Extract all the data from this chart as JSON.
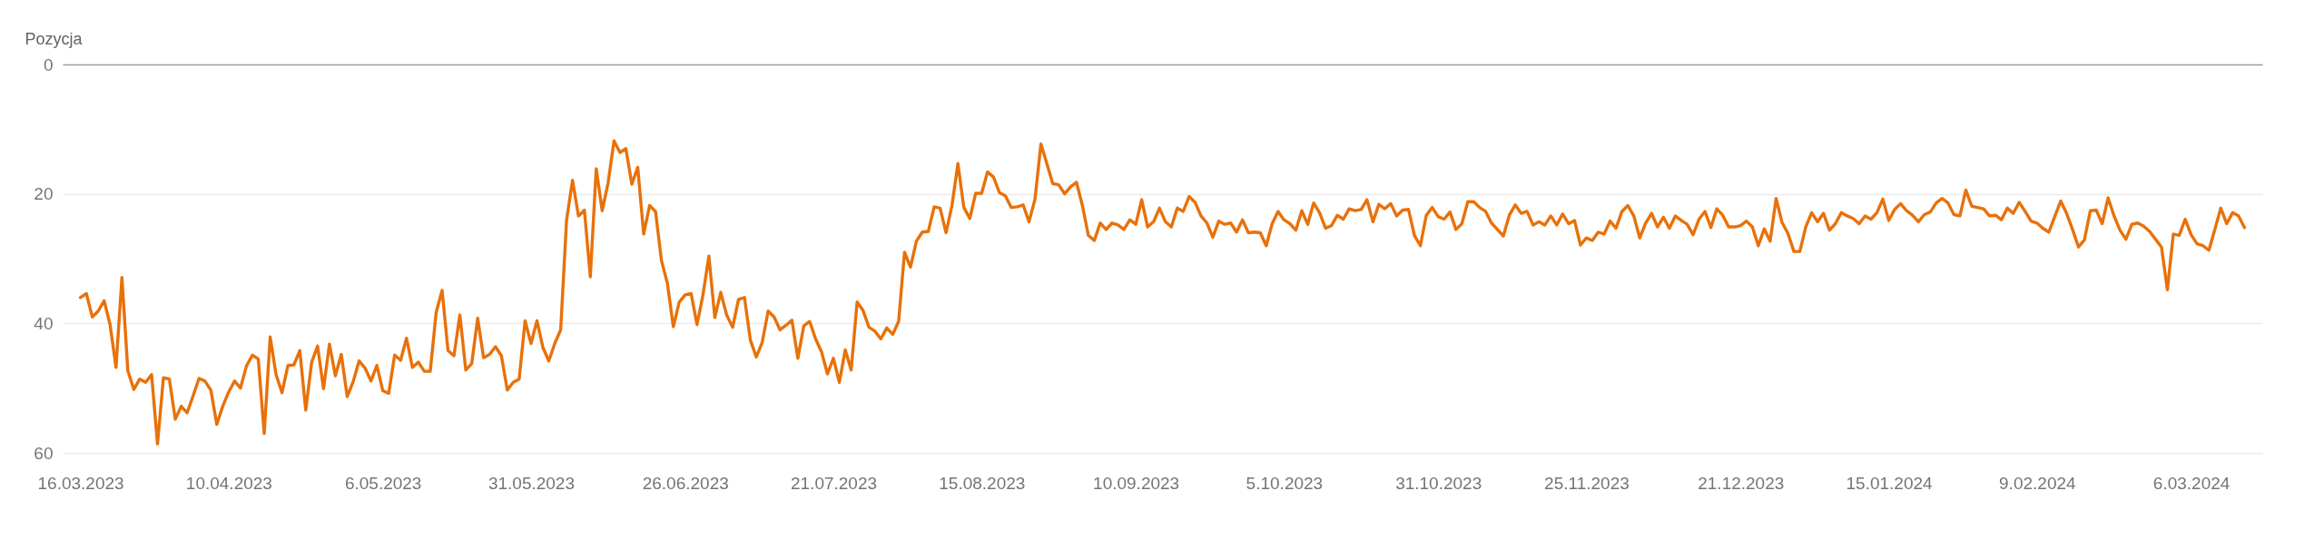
{
  "chart_data": {
    "type": "line",
    "ylabel": "Pozycja",
    "x": [
      "2023-03-16",
      "2023-03-17",
      "2023-03-18",
      "2023-03-19",
      "2023-03-20",
      "2023-03-21",
      "2023-03-22",
      "2023-03-23",
      "2023-03-24",
      "2023-03-25",
      "2023-03-26",
      "2023-03-27",
      "2023-03-28",
      "2023-03-29",
      "2023-03-30",
      "2023-03-31",
      "2023-04-01",
      "2023-04-02",
      "2023-04-03",
      "2023-04-04",
      "2023-04-05",
      "2023-04-06",
      "2023-04-07",
      "2023-04-08",
      "2023-04-09",
      "2023-04-10",
      "2023-04-11",
      "2023-04-12",
      "2023-04-13",
      "2023-04-14",
      "2023-04-15",
      "2023-04-16",
      "2023-04-17",
      "2023-04-18",
      "2023-04-19",
      "2023-04-20",
      "2023-04-21",
      "2023-04-22",
      "2023-04-23",
      "2023-04-24",
      "2023-04-25",
      "2023-04-26",
      "2023-04-27",
      "2023-04-28",
      "2023-04-29",
      "2023-04-30",
      "2023-05-01",
      "2023-05-02",
      "2023-05-03",
      "2023-05-04",
      "2023-05-05",
      "2023-05-06",
      "2023-05-07",
      "2023-05-08",
      "2023-05-09",
      "2023-05-10",
      "2023-05-11",
      "2023-05-12",
      "2023-05-13",
      "2023-05-14",
      "2023-05-15",
      "2023-05-16",
      "2023-05-17",
      "2023-05-18",
      "2023-05-19",
      "2023-05-20",
      "2023-05-21",
      "2023-05-22",
      "2023-05-23",
      "2023-05-24",
      "2023-05-25",
      "2023-05-26",
      "2023-05-27",
      "2023-05-28",
      "2023-05-29",
      "2023-05-30",
      "2023-05-31",
      "2023-06-01",
      "2023-06-02",
      "2023-06-03",
      "2023-06-04",
      "2023-06-05",
      "2023-06-06",
      "2023-06-07",
      "2023-06-08",
      "2023-06-09",
      "2023-06-10",
      "2023-06-11",
      "2023-06-12",
      "2023-06-13",
      "2023-06-14",
      "2023-06-15",
      "2023-06-16",
      "2023-06-17",
      "2023-06-18",
      "2023-06-19",
      "2023-06-20",
      "2023-06-21",
      "2023-06-22",
      "2023-06-23",
      "2023-06-24",
      "2023-06-25",
      "2023-06-26",
      "2023-06-27",
      "2023-06-28",
      "2023-06-29",
      "2023-06-30",
      "2023-07-01",
      "2023-07-02",
      "2023-07-03",
      "2023-07-04",
      "2023-07-05",
      "2023-07-06",
      "2023-07-07",
      "2023-07-08",
      "2023-07-09",
      "2023-07-10",
      "2023-07-11",
      "2023-07-12",
      "2023-07-13",
      "2023-07-14",
      "2023-07-15",
      "2023-07-16",
      "2023-07-17",
      "2023-07-18",
      "2023-07-19",
      "2023-07-20",
      "2023-07-21",
      "2023-07-22",
      "2023-07-23",
      "2023-07-24",
      "2023-07-25",
      "2023-07-26",
      "2023-07-27",
      "2023-07-28",
      "2023-07-29",
      "2023-07-30",
      "2023-07-31",
      "2023-08-01",
      "2023-08-02",
      "2023-08-03",
      "2023-08-04",
      "2023-08-05",
      "2023-08-06",
      "2023-08-07",
      "2023-08-08",
      "2023-08-09",
      "2023-08-10",
      "2023-08-11",
      "2023-08-12",
      "2023-08-13",
      "2023-08-14",
      "2023-08-15",
      "2023-08-16",
      "2023-08-17",
      "2023-08-18",
      "2023-08-19",
      "2023-08-20",
      "2023-08-21",
      "2023-08-22",
      "2023-08-23",
      "2023-08-24",
      "2023-08-25",
      "2023-08-26",
      "2023-08-27",
      "2023-08-28",
      "2023-08-29",
      "2023-08-30",
      "2023-08-31",
      "2023-09-01",
      "2023-09-02",
      "2023-09-03",
      "2023-09-04",
      "2023-09-05",
      "2023-09-06",
      "2023-09-07",
      "2023-09-08",
      "2023-09-09",
      "2023-09-10",
      "2023-09-11",
      "2023-09-12",
      "2023-09-13",
      "2023-09-14",
      "2023-09-15",
      "2023-09-16",
      "2023-09-17",
      "2023-09-18",
      "2023-09-19",
      "2023-09-20",
      "2023-09-21",
      "2023-09-22",
      "2023-09-23",
      "2023-09-24",
      "2023-09-25",
      "2023-09-26",
      "2023-09-27",
      "2023-09-28",
      "2023-09-29",
      "2023-09-30",
      "2023-10-01",
      "2023-10-02",
      "2023-10-03",
      "2023-10-04",
      "2023-10-05",
      "2023-10-06",
      "2023-10-07",
      "2023-10-08",
      "2023-10-09",
      "2023-10-10",
      "2023-10-11",
      "2023-10-12",
      "2023-10-13",
      "2023-10-14",
      "2023-10-15",
      "2023-10-16",
      "2023-10-17",
      "2023-10-18",
      "2023-10-19",
      "2023-10-20",
      "2023-10-21",
      "2023-10-22",
      "2023-10-23",
      "2023-10-24",
      "2023-10-25",
      "2023-10-26",
      "2023-10-27",
      "2023-10-28",
      "2023-10-29",
      "2023-10-30",
      "2023-10-31",
      "2023-11-01",
      "2023-11-02",
      "2023-11-03",
      "2023-11-04",
      "2023-11-05",
      "2023-11-06",
      "2023-11-07",
      "2023-11-08",
      "2023-11-09",
      "2023-11-10",
      "2023-11-11",
      "2023-11-12",
      "2023-11-13",
      "2023-11-14",
      "2023-11-15",
      "2023-11-16",
      "2023-11-17",
      "2023-11-18",
      "2023-11-19",
      "2023-11-20",
      "2023-11-21",
      "2023-11-22",
      "2023-11-23",
      "2023-11-24",
      "2023-11-25",
      "2023-11-26",
      "2023-11-27",
      "2023-11-28",
      "2023-11-29",
      "2023-11-30",
      "2023-12-01",
      "2023-12-02",
      "2023-12-03",
      "2023-12-04",
      "2023-12-05",
      "2023-12-06",
      "2023-12-07",
      "2023-12-08",
      "2023-12-09",
      "2023-12-10",
      "2023-12-11",
      "2023-12-12",
      "2023-12-13",
      "2023-12-14",
      "2023-12-15",
      "2023-12-16",
      "2023-12-17",
      "2023-12-18",
      "2023-12-19",
      "2023-12-20",
      "2023-12-21",
      "2023-12-22",
      "2023-12-23",
      "2023-12-24",
      "2023-12-25",
      "2023-12-26",
      "2023-12-27",
      "2023-12-28",
      "2023-12-29",
      "2023-12-30",
      "2023-12-31",
      "2024-01-01",
      "2024-01-02",
      "2024-01-03",
      "2024-01-04",
      "2024-01-05",
      "2024-01-06",
      "2024-01-07",
      "2024-01-08",
      "2024-01-09",
      "2024-01-10",
      "2024-01-11",
      "2024-01-12",
      "2024-01-13",
      "2024-01-14",
      "2024-01-15",
      "2024-01-16",
      "2024-01-17",
      "2024-01-18",
      "2024-01-19",
      "2024-01-20",
      "2024-01-21",
      "2024-01-22",
      "2024-01-23",
      "2024-01-24",
      "2024-01-25",
      "2024-01-26",
      "2024-01-27",
      "2024-01-28",
      "2024-01-29",
      "2024-01-30",
      "2024-01-31",
      "2024-02-01",
      "2024-02-02",
      "2024-02-03",
      "2024-02-04",
      "2024-02-05",
      "2024-02-06",
      "2024-02-07",
      "2024-02-08",
      "2024-02-09",
      "2024-02-10",
      "2024-02-11",
      "2024-02-12",
      "2024-02-13",
      "2024-02-14",
      "2024-02-15",
      "2024-02-16",
      "2024-02-17",
      "2024-02-18",
      "2024-02-19",
      "2024-02-20",
      "2024-02-21",
      "2024-02-22",
      "2024-02-23",
      "2024-02-24",
      "2024-02-25",
      "2024-02-26",
      "2024-02-27",
      "2024-02-28",
      "2024-02-29",
      "2024-03-01",
      "2024-03-02",
      "2024-03-03",
      "2024-03-04",
      "2024-03-05",
      "2024-03-06",
      "2024-03-07",
      "2024-03-08",
      "2024-03-09",
      "2024-03-10",
      "2024-03-11",
      "2024-03-12",
      "2024-03-13",
      "2024-03-14",
      "2024-03-15"
    ],
    "series": [
      {
        "color": "#e8710a",
        "values": [
          36.0,
          35.4,
          39.0,
          38.1,
          36.5,
          40.2,
          46.8,
          32.9,
          47.3,
          50.2,
          48.6,
          49.1,
          47.9,
          58.6,
          48.4,
          48.6,
          54.8,
          52.8,
          53.8,
          51.2,
          48.5,
          48.9,
          50.3,
          55.6,
          52.8,
          50.6,
          48.9,
          50.0,
          46.6,
          44.9,
          45.5,
          57.0,
          42.1,
          47.9,
          50.7,
          46.5,
          46.4,
          44.2,
          53.4,
          46.0,
          43.5,
          50.1,
          43.2,
          48.1,
          44.8,
          51.3,
          49.0,
          45.8,
          46.9,
          48.9,
          46.5,
          50.4,
          50.8,
          44.9,
          45.7,
          42.3,
          46.8,
          46.0,
          47.4,
          47.4,
          38.3,
          34.9,
          44.2,
          45.0,
          38.7,
          47.2,
          46.2,
          39.2,
          45.3,
          44.8,
          43.6,
          45.0,
          50.3,
          49.1,
          48.6,
          39.6,
          43.1,
          39.6,
          43.7,
          45.8,
          43.1,
          41.0,
          24.0,
          17.9,
          23.4,
          22.5,
          32.8,
          16.1,
          22.6,
          18.3,
          11.8,
          13.6,
          13.0,
          18.5,
          15.9,
          26.2,
          21.8,
          22.7,
          30.3,
          33.8,
          40.5,
          36.7,
          35.6,
          35.4,
          40.2,
          35.6,
          29.6,
          39.1,
          35.2,
          38.7,
          40.6,
          36.3,
          36.0,
          42.6,
          45.2,
          42.9,
          38.1,
          39.0,
          41.0,
          40.3,
          39.5,
          45.4,
          40.4,
          39.7,
          42.4,
          44.4,
          47.8,
          45.4,
          49.1,
          44.1,
          47.2,
          36.7,
          38.0,
          40.6,
          41.2,
          42.4,
          40.7,
          41.7,
          39.7,
          29.0,
          31.3,
          27.3,
          25.9,
          25.8,
          22.0,
          22.2,
          26.0,
          21.8,
          15.3,
          22.1,
          23.8,
          19.9,
          19.9,
          16.6,
          17.4,
          19.8,
          20.3,
          22.1,
          22.0,
          21.7,
          24.3,
          20.8,
          12.3,
          15.3,
          18.4,
          18.6,
          20.0,
          18.9,
          18.2,
          21.8,
          26.4,
          27.2,
          24.5,
          25.5,
          24.5,
          24.8,
          25.5,
          24.0,
          24.7,
          20.9,
          25.1,
          24.3,
          22.2,
          24.3,
          25.1,
          22.2,
          22.7,
          20.4,
          21.3,
          23.4,
          24.5,
          26.7,
          24.2,
          24.7,
          24.5,
          25.9,
          24.0,
          26.0,
          25.9,
          26.0,
          28.0,
          24.6,
          22.7,
          24.0,
          24.6,
          25.6,
          22.6,
          24.7,
          21.4,
          22.9,
          25.3,
          24.9,
          23.3,
          23.9,
          22.3,
          22.6,
          22.4,
          20.9,
          24.3,
          21.6,
          22.3,
          21.5,
          23.4,
          22.5,
          22.4,
          26.4,
          28.0,
          23.3,
          22.1,
          23.5,
          23.9,
          22.8,
          25.5,
          24.6,
          21.2,
          21.2,
          22.1,
          22.7,
          24.5,
          25.5,
          26.5,
          23.3,
          21.7,
          23.0,
          22.7,
          24.8,
          24.3,
          24.8,
          23.4,
          24.8,
          23.1,
          24.6,
          24.1,
          27.9,
          26.8,
          27.2,
          25.9,
          26.2,
          24.2,
          25.3,
          22.7,
          21.8,
          23.4,
          26.8,
          24.5,
          23.0,
          25.1,
          23.6,
          25.3,
          23.4,
          24.1,
          24.7,
          26.3,
          23.9,
          22.7,
          25.2,
          22.3,
          23.3,
          25.1,
          25.1,
          24.9,
          24.2,
          25.1,
          28.0,
          25.4,
          27.3,
          20.7,
          24.4,
          26.1,
          28.9,
          28.9,
          25.1,
          22.9,
          24.3,
          23.0,
          25.6,
          24.6,
          22.9,
          23.4,
          23.8,
          24.6,
          23.4,
          23.9,
          22.9,
          20.8,
          24.1,
          22.4,
          21.5,
          22.6,
          23.3,
          24.3,
          23.2,
          22.8,
          21.4,
          20.7,
          21.4,
          23.2,
          23.4,
          19.4,
          21.9,
          22.1,
          22.3,
          23.4,
          23.3,
          24.0,
          22.2,
          23.0,
          21.3,
          22.7,
          24.2,
          24.5,
          25.3,
          25.9,
          23.5,
          21.1,
          23.0,
          25.5,
          28.2,
          27.1,
          22.6,
          22.5,
          24.6,
          20.6,
          23.4,
          25.6,
          27.0,
          24.7,
          24.5,
          25.0,
          25.8,
          27.0,
          28.2,
          34.8,
          26.2,
          26.4,
          23.9,
          26.3,
          27.7,
          28.0,
          28.7,
          25.5,
          22.2,
          24.6,
          22.9,
          23.4,
          25.2
        ]
      }
    ],
    "xlim": [
      "2023-03-13",
      "2024-03-18"
    ],
    "xticks": [
      {
        "value": "2023-03-16",
        "label": "16.03.2023"
      },
      {
        "value": "2023-04-10",
        "label": "10.04.2023"
      },
      {
        "value": "2023-05-06",
        "label": "6.05.2023"
      },
      {
        "value": "2023-05-31",
        "label": "31.05.2023"
      },
      {
        "value": "2023-06-26",
        "label": "26.06.2023"
      },
      {
        "value": "2023-07-21",
        "label": "21.07.2023"
      },
      {
        "value": "2023-08-15",
        "label": "15.08.2023"
      },
      {
        "value": "2023-09-10",
        "label": "10.09.2023"
      },
      {
        "value": "2023-10-05",
        "label": "5.10.2023"
      },
      {
        "value": "2023-10-31",
        "label": "31.10.2023"
      },
      {
        "value": "2023-11-25",
        "label": "25.11.2023"
      },
      {
        "value": "2023-12-21",
        "label": "21.12.2023"
      },
      {
        "value": "2024-01-15",
        "label": "15.01.2024"
      },
      {
        "value": "2024-02-09",
        "label": "9.02.2024"
      },
      {
        "value": "2024-03-06",
        "label": "6.03.2024"
      }
    ],
    "ylim": [
      60,
      0
    ],
    "yticks": [
      0,
      20,
      40,
      60
    ],
    "grid": "y",
    "line_style": "solid"
  }
}
